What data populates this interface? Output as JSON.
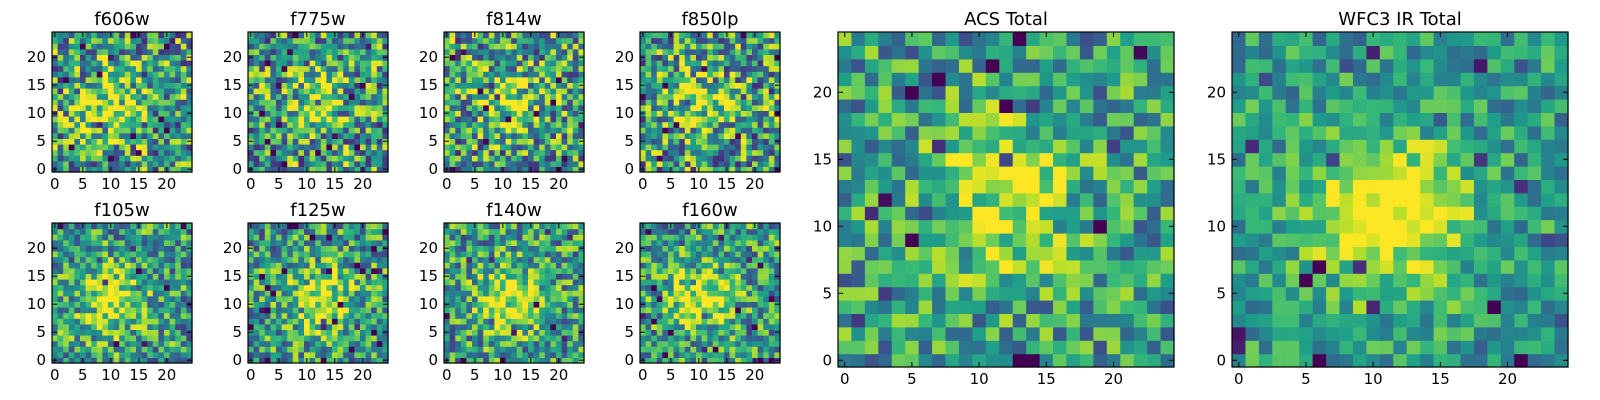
{
  "figure": {
    "description_colormap": "viridis"
  },
  "chart_data": [
    {
      "type": "heatmap",
      "title": "f606w",
      "xlim": [
        0,
        24
      ],
      "ylim": [
        0,
        24
      ],
      "xticks": [
        0,
        5,
        10,
        15,
        20
      ],
      "yticks": [
        0,
        5,
        10,
        15,
        20
      ],
      "grid": 25,
      "blob": [
        10,
        11.5
      ],
      "blob_strength": 0.35,
      "noise": 0.55,
      "seed": 11
    },
    {
      "type": "heatmap",
      "title": "f775w",
      "xlim": [
        0,
        24
      ],
      "ylim": [
        0,
        24
      ],
      "xticks": [
        0,
        5,
        10,
        15,
        20
      ],
      "yticks": [
        0,
        5,
        10,
        15,
        20
      ],
      "grid": 25,
      "blob": [
        11,
        12
      ],
      "blob_strength": 0.3,
      "noise": 0.55,
      "seed": 23
    },
    {
      "type": "heatmap",
      "title": "f814w",
      "xlim": [
        0,
        24
      ],
      "ylim": [
        0,
        24
      ],
      "xticks": [
        0,
        5,
        10,
        15,
        20
      ],
      "yticks": [
        0,
        5,
        10,
        15,
        20
      ],
      "grid": 25,
      "blob": [
        11,
        12
      ],
      "blob_strength": 0.35,
      "noise": 0.55,
      "seed": 37
    },
    {
      "type": "heatmap",
      "title": "f850lp",
      "xlim": [
        0,
        24
      ],
      "ylim": [
        0,
        24
      ],
      "xticks": [
        0,
        5,
        10,
        15,
        20
      ],
      "yticks": [
        0,
        5,
        10,
        15,
        20
      ],
      "grid": 25,
      "blob": [
        11,
        12
      ],
      "blob_strength": 0.3,
      "noise": 0.55,
      "seed": 41
    },
    {
      "type": "heatmap",
      "title": "f105w",
      "xlim": [
        0,
        24
      ],
      "ylim": [
        0,
        24
      ],
      "xticks": [
        0,
        5,
        10,
        15,
        20
      ],
      "yticks": [
        0,
        5,
        10,
        15,
        20
      ],
      "grid": 25,
      "blob": [
        10,
        10.5
      ],
      "blob_strength": 0.45,
      "noise": 0.45,
      "seed": 53
    },
    {
      "type": "heatmap",
      "title": "f125w",
      "xlim": [
        0,
        24
      ],
      "ylim": [
        0,
        24
      ],
      "xticks": [
        0,
        5,
        10,
        15,
        20
      ],
      "yticks": [
        0,
        5,
        10,
        15,
        20
      ],
      "grid": 25,
      "blob": [
        12,
        11
      ],
      "blob_strength": 0.45,
      "noise": 0.45,
      "seed": 67
    },
    {
      "type": "heatmap",
      "title": "f140w",
      "xlim": [
        0,
        24
      ],
      "ylim": [
        0,
        24
      ],
      "xticks": [
        0,
        5,
        10,
        15,
        20
      ],
      "yticks": [
        0,
        5,
        10,
        15,
        20
      ],
      "grid": 25,
      "blob": [
        11,
        11
      ],
      "blob_strength": 0.45,
      "noise": 0.45,
      "seed": 79
    },
    {
      "type": "heatmap",
      "title": "f160w",
      "xlim": [
        0,
        24
      ],
      "ylim": [
        0,
        24
      ],
      "xticks": [
        0,
        5,
        10,
        15,
        20
      ],
      "yticks": [
        0,
        5,
        10,
        15,
        20
      ],
      "grid": 25,
      "blob": [
        10,
        11
      ],
      "blob_strength": 0.45,
      "noise": 0.45,
      "seed": 83
    },
    {
      "type": "heatmap",
      "title": "ACS Total",
      "xlim": [
        0,
        24
      ],
      "ylim": [
        0,
        24
      ],
      "xticks": [
        0,
        5,
        10,
        15,
        20
      ],
      "yticks": [
        0,
        5,
        10,
        15,
        20
      ],
      "grid": 25,
      "blob": [
        12,
        12
      ],
      "blob_strength": 0.4,
      "noise": 0.4,
      "seed": 97
    },
    {
      "type": "heatmap",
      "title": "WFC3 IR Total",
      "xlim": [
        0,
        24
      ],
      "ylim": [
        0,
        24
      ],
      "xticks": [
        0,
        5,
        10,
        15,
        20
      ],
      "yticks": [
        0,
        5,
        10,
        15,
        20
      ],
      "grid": 25,
      "blob": [
        11,
        11
      ],
      "blob_strength": 0.6,
      "noise": 0.3,
      "seed": 101
    }
  ]
}
